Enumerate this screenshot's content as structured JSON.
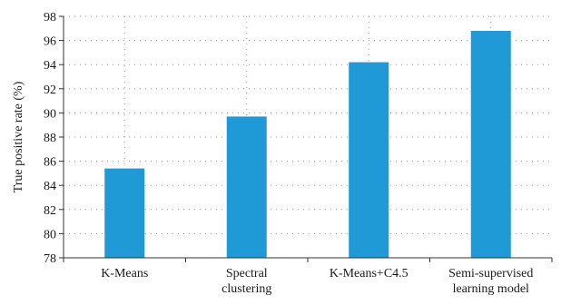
{
  "chart_data": {
    "type": "bar",
    "categories": [
      [
        "K-Means"
      ],
      [
        "Spectral",
        "clustering"
      ],
      [
        "K-Means+C4.5"
      ],
      [
        "Semi-supervised",
        "learning model"
      ]
    ],
    "values": [
      85.4,
      89.7,
      94.2,
      96.8
    ],
    "title": "",
    "xlabel": "",
    "ylabel": "True positive rate (%)",
    "ylim": [
      78,
      98
    ],
    "yticks": [
      78,
      80,
      82,
      84,
      86,
      88,
      90,
      92,
      94,
      96,
      98
    ],
    "grid": true,
    "bar_color": "#1f9ad6",
    "grid_color": "#9a9a9a",
    "axis_color": "#333333"
  }
}
